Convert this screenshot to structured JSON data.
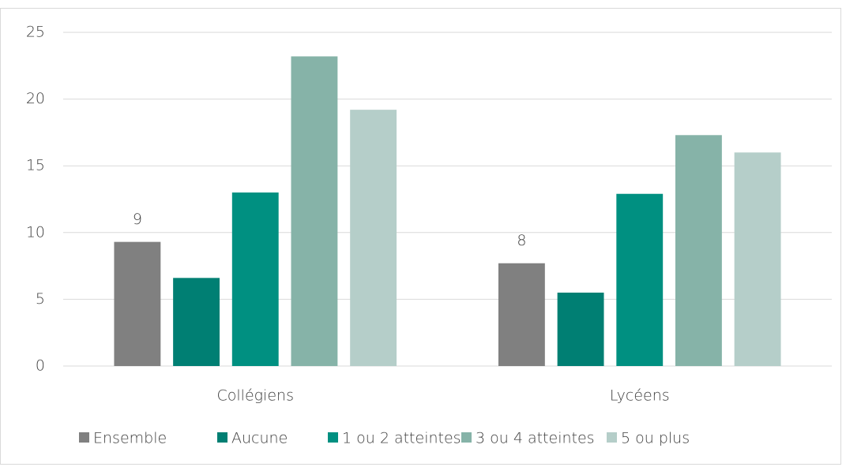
{
  "chart_data": {
    "type": "bar",
    "categories": [
      "Collégiens",
      "Lycéens"
    ],
    "series": [
      {
        "name": "Ensemble",
        "color": "#808080",
        "values": [
          9.3,
          7.7
        ],
        "value_labels": [
          "9",
          "8"
        ]
      },
      {
        "name": "Aucune",
        "color": "#007f73",
        "values": [
          6.6,
          5.5
        ]
      },
      {
        "name": "1 ou 2 atteintes",
        "color": "#009081",
        "values": [
          13.0,
          12.9
        ]
      },
      {
        "name": "3 ou 4 atteintes",
        "color": "#86b3a8",
        "values": [
          23.2,
          17.3
        ]
      },
      {
        "name": "5 ou plus",
        "color": "#b5cec9",
        "values": [
          19.2,
          16.0
        ]
      }
    ],
    "ylim": [
      0,
      25
    ],
    "yticks": [
      0,
      5,
      10,
      15,
      20,
      25
    ],
    "grid": true,
    "legend": "bottom"
  }
}
